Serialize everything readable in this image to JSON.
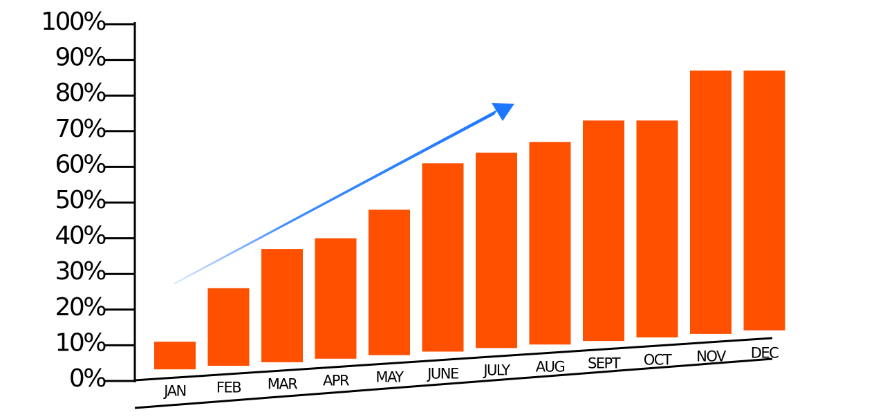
{
  "chart_data": {
    "type": "bar",
    "categories": [
      "JAN",
      "FEB",
      "MAR",
      "APR",
      "MAY",
      "JUNE",
      "JULY",
      "AUG",
      "SEPT",
      "OCT",
      "NOV",
      "DEC"
    ],
    "values": [
      11,
      26,
      37,
      40,
      48,
      61,
      64,
      67,
      73,
      73,
      87,
      87
    ],
    "y_ticks": [
      "0%",
      "10%",
      "20%",
      "30%",
      "40%",
      "50%",
      "60%",
      "70%",
      "80%",
      "90%",
      "100%"
    ],
    "ylim": [
      0,
      100
    ],
    "unit": "%",
    "grid": false,
    "legend": "none",
    "trend_arrow": true,
    "colors": {
      "bar": "#ff5000",
      "arrow": "#1e78ff",
      "axis": "#000000"
    }
  }
}
